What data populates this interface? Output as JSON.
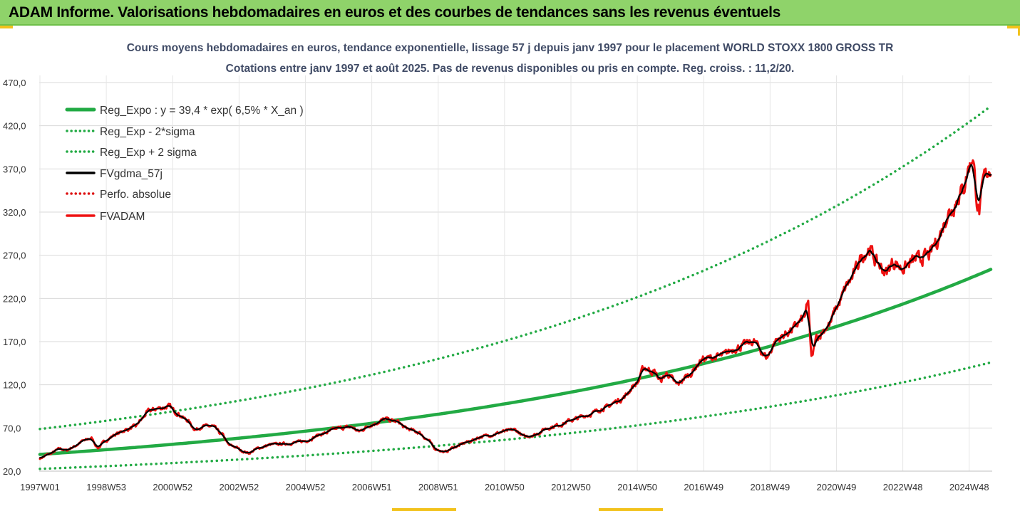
{
  "banner": {
    "title": "ADAM Informe. Valorisations hebdomadaires en euros et des courbes de tendances sans les revenus éventuels"
  },
  "chart_data": {
    "type": "line",
    "title": "Cours moyens hebdomadaires en euros, tendance exponentielle, lissage 57 j depuis janv 1997 pour le placement WORLD STOXX 1800 GROSS TR",
    "subtitle": "Cotations entre janv 1997 et août 2025. Pas de revenus disponibles ou pris en compte. Reg. croiss. : 11,2/20.",
    "xlabel": "",
    "ylabel": "",
    "ylim": [
      20,
      470
    ],
    "yticks": [
      "20,0",
      "70,0",
      "120,0",
      "170,0",
      "220,0",
      "270,0",
      "320,0",
      "370,0",
      "420,0",
      "470,0"
    ],
    "xlim": [
      1997.0,
      2025.65
    ],
    "xticks": [
      {
        "label": "1997W01",
        "t": 1997.0
      },
      {
        "label": "1998W53",
        "t": 1999.0
      },
      {
        "label": "2000W52",
        "t": 2001.0
      },
      {
        "label": "2002W52",
        "t": 2003.0
      },
      {
        "label": "2004W52",
        "t": 2005.0
      },
      {
        "label": "2006W51",
        "t": 2007.0
      },
      {
        "label": "2008W51",
        "t": 2009.0
      },
      {
        "label": "2010W50",
        "t": 2011.0
      },
      {
        "label": "2012W50",
        "t": 2013.0
      },
      {
        "label": "2014W50",
        "t": 2015.0
      },
      {
        "label": "2016W49",
        "t": 2017.0
      },
      {
        "label": "2018W49",
        "t": 2019.0
      },
      {
        "label": "2020W49",
        "t": 2021.0
      },
      {
        "label": "2022W48",
        "t": 2023.0
      },
      {
        "label": "2024W48",
        "t": 2025.0
      }
    ],
    "grid": true,
    "legend_position": "top-left",
    "regression": {
      "a": 39.4,
      "rate": 0.065,
      "lower_factor": 0.575,
      "upper_factor": 1.745
    },
    "series": [
      {
        "name": "Reg_Expo : y = 39,4 * exp( 6,5% *  X_an )",
        "color": "#22aa44",
        "style": "solid",
        "kind": "reg"
      },
      {
        "name": "Reg_Exp - 2*sigma",
        "color": "#22aa44",
        "style": "dotted",
        "kind": "lower"
      },
      {
        "name": "Reg_Exp + 2 sigma",
        "color": "#22aa44",
        "style": "dotted",
        "kind": "upper"
      },
      {
        "name": "FVgdma_57j",
        "color": "#000000",
        "style": "solid",
        "kind": "smooth"
      },
      {
        "name": "Perfo. absolue",
        "color": "#dd1111",
        "style": "dotted",
        "kind": "none"
      },
      {
        "name": "FVADAM",
        "color": "#ee1111",
        "style": "solid",
        "kind": "price"
      }
    ],
    "price_points": [
      [
        1997.0,
        35
      ],
      [
        1997.3,
        40
      ],
      [
        1997.6,
        46
      ],
      [
        1997.8,
        44
      ],
      [
        1998.0,
        48
      ],
      [
        1998.3,
        55
      ],
      [
        1998.55,
        58
      ],
      [
        1998.75,
        47
      ],
      [
        1999.0,
        56
      ],
      [
        1999.3,
        63
      ],
      [
        1999.6,
        68
      ],
      [
        1999.9,
        72
      ],
      [
        2000.0,
        78
      ],
      [
        2000.3,
        90
      ],
      [
        2000.6,
        93
      ],
      [
        2000.9,
        95
      ],
      [
        2001.1,
        88
      ],
      [
        2001.4,
        80
      ],
      [
        2001.7,
        68
      ],
      [
        2001.9,
        72
      ],
      [
        2002.2,
        72
      ],
      [
        2002.5,
        62
      ],
      [
        2002.7,
        50
      ],
      [
        2002.9,
        48
      ],
      [
        2003.1,
        43
      ],
      [
        2003.3,
        41
      ],
      [
        2003.6,
        47
      ],
      [
        2004.0,
        51
      ],
      [
        2004.5,
        52
      ],
      [
        2005.0,
        55
      ],
      [
        2005.5,
        63
      ],
      [
        2006.0,
        70
      ],
      [
        2006.4,
        71
      ],
      [
        2006.6,
        66
      ],
      [
        2007.0,
        74
      ],
      [
        2007.4,
        80
      ],
      [
        2007.8,
        77
      ],
      [
        2008.0,
        70
      ],
      [
        2008.4,
        65
      ],
      [
        2008.7,
        56
      ],
      [
        2008.9,
        46
      ],
      [
        2009.2,
        42
      ],
      [
        2009.5,
        48
      ],
      [
        2009.9,
        54
      ],
      [
        2010.3,
        60
      ],
      [
        2010.6,
        62
      ],
      [
        2011.0,
        66
      ],
      [
        2011.3,
        68
      ],
      [
        2011.6,
        60
      ],
      [
        2011.9,
        62
      ],
      [
        2012.3,
        70
      ],
      [
        2012.7,
        74
      ],
      [
        2013.0,
        79
      ],
      [
        2013.5,
        85
      ],
      [
        2014.0,
        93
      ],
      [
        2014.5,
        103
      ],
      [
        2015.0,
        122
      ],
      [
        2015.2,
        140
      ],
      [
        2015.5,
        135
      ],
      [
        2015.7,
        125
      ],
      [
        2015.9,
        133
      ],
      [
        2016.2,
        120
      ],
      [
        2016.5,
        130
      ],
      [
        2017.0,
        150
      ],
      [
        2017.5,
        153
      ],
      [
        2018.0,
        163
      ],
      [
        2018.5,
        170
      ],
      [
        2018.9,
        152
      ],
      [
        2019.2,
        172
      ],
      [
        2019.6,
        182
      ],
      [
        2020.0,
        196
      ],
      [
        2020.15,
        213
      ],
      [
        2020.25,
        150
      ],
      [
        2020.4,
        175
      ],
      [
        2020.8,
        190
      ],
      [
        2021.0,
        210
      ],
      [
        2021.4,
        240
      ],
      [
        2021.8,
        270
      ],
      [
        2022.0,
        278
      ],
      [
        2022.2,
        262
      ],
      [
        2022.5,
        250
      ],
      [
        2022.7,
        262
      ],
      [
        2023.0,
        255
      ],
      [
        2023.4,
        265
      ],
      [
        2023.8,
        270
      ],
      [
        2024.0,
        285
      ],
      [
        2024.4,
        320
      ],
      [
        2024.8,
        345
      ],
      [
        2025.0,
        373
      ],
      [
        2025.1,
        385
      ],
      [
        2025.25,
        330
      ],
      [
        2025.3,
        320
      ],
      [
        2025.45,
        360
      ],
      [
        2025.65,
        372
      ]
    ]
  }
}
